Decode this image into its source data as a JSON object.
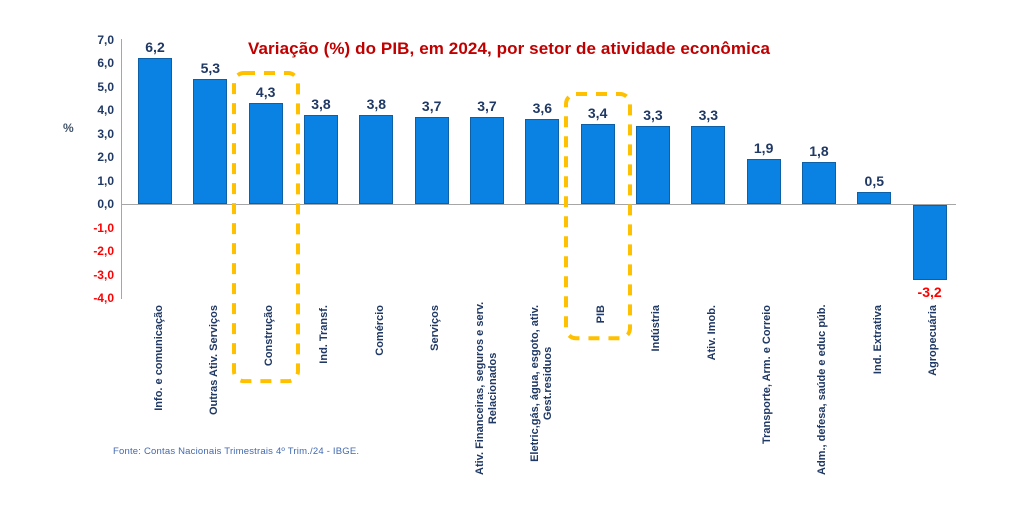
{
  "page": {
    "background": "#FFFFFF"
  },
  "footer": {
    "source": "Fonte: Contas Nacionais Trimestrais 4º Trim./24 - IBGE."
  },
  "chart_data": {
    "type": "bar",
    "title": "Variação (%) do PIB, em 2024, por setor de atividade econômica",
    "xlabel": "",
    "ylabel": "%",
    "ylim": [
      -4.0,
      7.0
    ],
    "ytick_values": [
      7,
      6,
      5,
      4,
      3,
      2,
      1,
      0,
      -1,
      -2,
      -3,
      -4
    ],
    "ytick_labels": [
      "7,0",
      "6,0",
      "5,0",
      "4,0",
      "3,0",
      "2,0",
      "1,0",
      "0,0",
      "-1,0",
      "-2,0",
      "-3,0",
      "-4,0"
    ],
    "grid": false,
    "legend_position": "none",
    "categories": [
      "Info. e comunicação",
      "Outras Ativ. Serviços",
      "Construção",
      "Ind. Transf.",
      "Comércio",
      "Serviços",
      "Ativ. Financeiras, seguros e serv. Relacionados",
      "Eletric,gás, água, esgoto, ativ. Gest.residuos",
      "PIB",
      "Indústria",
      "Ativ. Imob.",
      "Transporte, Arm. e Correio",
      "Adm., defesa, saúde e educ púb.",
      "Ind. Extrativa",
      "Agropecuária"
    ],
    "category_label_lines": [
      [
        "Info. e comunicação"
      ],
      [
        "Outras Ativ. Serviços"
      ],
      [
        "Construção"
      ],
      [
        "Ind. Transf."
      ],
      [
        "Comércio"
      ],
      [
        "Serviços"
      ],
      [
        "Ativ. Financeiras, seguros e serv.",
        "Relacionados"
      ],
      [
        "Eletric,gás, água, esgoto, ativ.",
        "Gest.residuos"
      ],
      [
        "PIB"
      ],
      [
        "Indústria"
      ],
      [
        "Ativ. Imob."
      ],
      [
        "Transporte, Arm. e Correio"
      ],
      [
        "Adm., defesa, saúde e educ púb."
      ],
      [
        "Ind. Extrativa"
      ],
      [
        "Agropecuária"
      ]
    ],
    "values": [
      6.2,
      5.3,
      4.3,
      3.8,
      3.8,
      3.7,
      3.7,
      3.6,
      3.4,
      3.3,
      3.3,
      1.9,
      1.8,
      0.5,
      -3.2
    ],
    "value_labels": [
      "6,2",
      "5,3",
      "4,3",
      "3,8",
      "3,8",
      "3,7",
      "3,7",
      "3,6",
      "3,4",
      "3,3",
      "3,3",
      "1,9",
      "1,8",
      "0,5",
      "-3,2"
    ],
    "highlighted_categories": [
      "Construção",
      "PIB"
    ],
    "colors": {
      "title": "#C00000",
      "bar_fill": "#0A82E3",
      "bar_border": "#0D5FA6",
      "positive_label": "#1F3864",
      "negative_label": "#FF0000",
      "highlight_box": "#FFC000",
      "axis_line": "#A6A6A6",
      "unit_label": "#44546A",
      "source": "#4169B0"
    }
  }
}
